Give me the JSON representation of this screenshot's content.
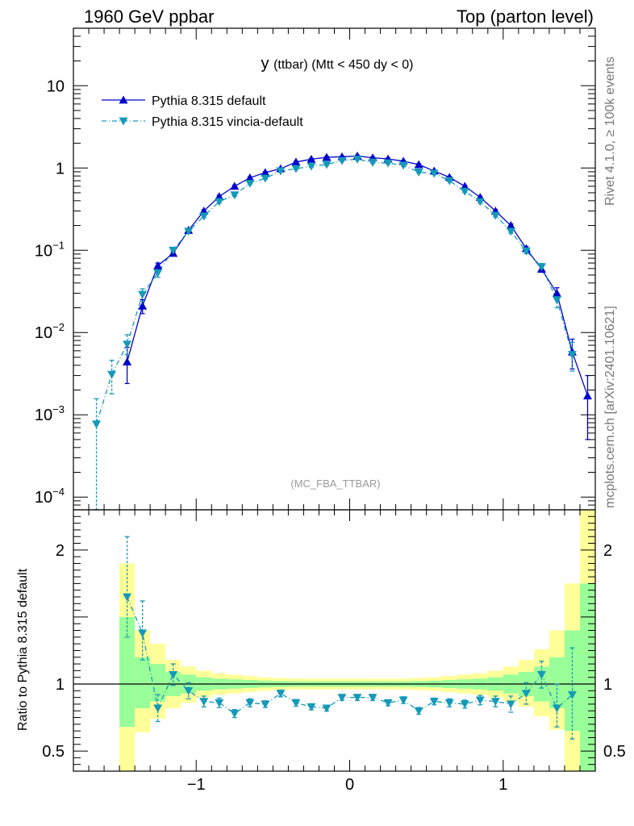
{
  "header": {
    "left": "1960 GeV ppbar",
    "right": "Top (parton level)"
  },
  "side_labels": {
    "rivet": "Rivet 4.1.0, ≥ 100k events",
    "mcplots": "mcplots.cern.ch [arXiv:2401.10621]"
  },
  "colors": {
    "default": "#0000cc",
    "vincia": "#1599b8",
    "band_inner": "#99ff99",
    "band_outer": "#ffff99"
  },
  "chart_data": [
    {
      "type": "line",
      "title_main": "y",
      "title_rest": "(ttbar) (Mtt < 450 dy < 0)",
      "watermark": "(MC_FBA_TTBAR)",
      "xlabel": "",
      "ylabel": "",
      "yscale": "log",
      "xlim": [
        -1.8,
        1.6
      ],
      "ylim": [
        7e-05,
        50
      ],
      "y_ticks": [
        {
          "value": 10,
          "mant": "10",
          "exp": ""
        },
        {
          "value": 1,
          "mant": "1",
          "exp": ""
        },
        {
          "value": 0.1,
          "mant": "10",
          "exp": "−1"
        },
        {
          "value": 0.01,
          "mant": "10",
          "exp": "−2"
        },
        {
          "value": 0.001,
          "mant": "10",
          "exp": "−3"
        },
        {
          "value": 0.0001,
          "mant": "10",
          "exp": "−4"
        }
      ],
      "legend": [
        "Pythia 8.315 default",
        "Pythia 8.315 vincia-default"
      ],
      "series": [
        {
          "name": "Pythia 8.315 default",
          "x": [
            -1.45,
            -1.35,
            -1.25,
            -1.15,
            -1.05,
            -0.95,
            -0.85,
            -0.75,
            -0.65,
            -0.55,
            -0.45,
            -0.35,
            -0.25,
            -0.15,
            -0.05,
            0.05,
            0.15,
            0.25,
            0.35,
            0.45,
            0.55,
            0.65,
            0.75,
            0.85,
            0.95,
            1.05,
            1.15,
            1.25,
            1.35,
            1.45,
            1.55
          ],
          "y": [
            0.0044,
            0.021,
            0.065,
            0.092,
            0.175,
            0.3,
            0.45,
            0.6,
            0.76,
            0.88,
            0.98,
            1.18,
            1.28,
            1.35,
            1.37,
            1.4,
            1.33,
            1.29,
            1.21,
            1.1,
            0.92,
            0.77,
            0.6,
            0.44,
            0.3,
            0.2,
            0.105,
            0.059,
            0.03,
            0.0058,
            0.0017
          ],
          "err_up": [
            0.0022,
            0.004,
            0.005,
            0.005,
            0.008,
            0.012,
            0.015,
            0.018,
            0.02,
            0.022,
            0.024,
            0.026,
            0.027,
            0.028,
            0.028,
            0.028,
            0.027,
            0.027,
            0.026,
            0.025,
            0.022,
            0.02,
            0.018,
            0.015,
            0.012,
            0.009,
            0.006,
            0.005,
            0.005,
            0.0025,
            0.0013
          ],
          "err_down": [
            0.002,
            0.004,
            0.005,
            0.005,
            0.008,
            0.012,
            0.015,
            0.018,
            0.02,
            0.022,
            0.024,
            0.026,
            0.027,
            0.028,
            0.028,
            0.028,
            0.027,
            0.027,
            0.026,
            0.025,
            0.022,
            0.02,
            0.018,
            0.015,
            0.012,
            0.009,
            0.006,
            0.005,
            0.005,
            0.0022,
            0.0012
          ]
        },
        {
          "name": "Pythia 8.315 vincia-default",
          "x": [
            -1.65,
            -1.55,
            -1.45,
            -1.35,
            -1.25,
            -1.15,
            -1.05,
            -0.95,
            -0.85,
            -0.75,
            -0.65,
            -0.55,
            -0.45,
            -0.35,
            -0.25,
            -0.15,
            -0.05,
            0.05,
            0.15,
            0.25,
            0.35,
            0.45,
            0.55,
            0.65,
            0.75,
            0.85,
            0.95,
            1.05,
            1.15,
            1.25,
            1.35,
            1.45
          ],
          "y": [
            0.00077,
            0.0031,
            0.0072,
            0.029,
            0.053,
            0.1,
            0.17,
            0.26,
            0.39,
            0.47,
            0.65,
            0.75,
            0.92,
            0.98,
            1.05,
            1.1,
            1.23,
            1.28,
            1.17,
            1.15,
            1.08,
            0.89,
            0.86,
            0.7,
            0.52,
            0.39,
            0.265,
            0.17,
            0.098,
            0.063,
            0.025,
            0.0054
          ],
          "err_up": [
            0.0008,
            0.0015,
            0.0022,
            0.005,
            0.006,
            0.007,
            0.008,
            0.012,
            0.014,
            0.016,
            0.018,
            0.02,
            0.022,
            0.024,
            0.025,
            0.026,
            0.027,
            0.027,
            0.026,
            0.025,
            0.024,
            0.022,
            0.02,
            0.018,
            0.016,
            0.014,
            0.012,
            0.009,
            0.007,
            0.006,
            0.005,
            0.0022
          ],
          "err_down": [
            0.0007,
            0.0013,
            0.0018,
            0.005,
            0.006,
            0.007,
            0.008,
            0.012,
            0.014,
            0.016,
            0.018,
            0.02,
            0.022,
            0.024,
            0.025,
            0.026,
            0.027,
            0.027,
            0.026,
            0.025,
            0.024,
            0.022,
            0.02,
            0.018,
            0.016,
            0.014,
            0.012,
            0.009,
            0.007,
            0.006,
            0.005,
            0.002
          ]
        }
      ]
    },
    {
      "type": "line",
      "ylabel": "Ratio to Pythia 8.315 default",
      "xlabel": "",
      "xlim": [
        -1.8,
        1.6
      ],
      "ylim": [
        0.35,
        2.3
      ],
      "x_ticks": [
        {
          "value": -1,
          "label": "−1"
        },
        {
          "value": 0,
          "label": "0"
        },
        {
          "value": 1,
          "label": "1"
        }
      ],
      "y_ticks": [
        {
          "value": 2,
          "label": "2"
        },
        {
          "value": 1,
          "label": "1"
        },
        {
          "value": 0.5,
          "label": "0.5"
        }
      ],
      "reference": 1,
      "bands": {
        "edges": [
          -1.5,
          -1.4,
          -1.3,
          -1.2,
          -1.1,
          -1.0,
          -0.9,
          -0.8,
          -0.7,
          -0.6,
          -0.5,
          -0.4,
          -0.3,
          -0.2,
          -0.1,
          0.0,
          0.1,
          0.2,
          0.3,
          0.4,
          0.5,
          0.6,
          0.7,
          0.8,
          0.9,
          1.0,
          1.1,
          1.2,
          1.3,
          1.4,
          1.5,
          1.6
        ],
        "inner_low": [
          0.68,
          0.82,
          0.87,
          0.91,
          0.93,
          0.95,
          0.96,
          0.965,
          0.97,
          0.975,
          0.978,
          0.98,
          0.98,
          0.98,
          0.98,
          0.98,
          0.98,
          0.98,
          0.98,
          0.978,
          0.975,
          0.97,
          0.965,
          0.96,
          0.95,
          0.93,
          0.91,
          0.87,
          0.82,
          0.65,
          0.35
        ],
        "inner_high": [
          1.5,
          1.2,
          1.15,
          1.09,
          1.07,
          1.05,
          1.04,
          1.035,
          1.03,
          1.025,
          1.022,
          1.02,
          1.02,
          1.02,
          1.02,
          1.02,
          1.02,
          1.02,
          1.02,
          1.022,
          1.025,
          1.03,
          1.035,
          1.04,
          1.05,
          1.07,
          1.09,
          1.13,
          1.2,
          1.4,
          1.75
        ],
        "outer_low": [
          0.35,
          0.64,
          0.74,
          0.82,
          0.86,
          0.9,
          0.92,
          0.93,
          0.94,
          0.95,
          0.955,
          0.96,
          0.96,
          0.96,
          0.96,
          0.96,
          0.96,
          0.96,
          0.96,
          0.955,
          0.95,
          0.94,
          0.93,
          0.92,
          0.9,
          0.87,
          0.83,
          0.76,
          0.66,
          0.35,
          0.35
        ],
        "outer_high": [
          1.9,
          1.4,
          1.3,
          1.18,
          1.13,
          1.1,
          1.08,
          1.07,
          1.06,
          1.05,
          1.045,
          1.04,
          1.04,
          1.04,
          1.04,
          1.04,
          1.04,
          1.04,
          1.04,
          1.045,
          1.05,
          1.06,
          1.07,
          1.08,
          1.1,
          1.13,
          1.18,
          1.26,
          1.4,
          1.75,
          2.3
        ]
      },
      "series": [
        {
          "name": "Pythia 8.315 vincia-default",
          "x": [
            -1.45,
            -1.35,
            -1.25,
            -1.15,
            -1.05,
            -0.95,
            -0.85,
            -0.75,
            -0.65,
            -0.55,
            -0.45,
            -0.35,
            -0.25,
            -0.15,
            -0.05,
            0.05,
            0.15,
            0.25,
            0.35,
            0.45,
            0.55,
            0.65,
            0.75,
            0.85,
            0.95,
            1.05,
            1.15,
            1.25,
            1.35,
            1.45
          ],
          "y": [
            1.65,
            1.38,
            0.82,
            1.07,
            0.95,
            0.87,
            0.86,
            0.78,
            0.86,
            0.85,
            0.93,
            0.86,
            0.83,
            0.82,
            0.9,
            0.9,
            0.9,
            0.86,
            0.88,
            0.8,
            0.87,
            0.86,
            0.85,
            0.88,
            0.87,
            0.85,
            0.93,
            1.07,
            0.82,
            0.92
          ],
          "err_up": [
            0.45,
            0.24,
            0.1,
            0.08,
            0.06,
            0.04,
            0.035,
            0.03,
            0.03,
            0.025,
            0.025,
            0.025,
            0.022,
            0.022,
            0.022,
            0.022,
            0.022,
            0.022,
            0.025,
            0.025,
            0.025,
            0.03,
            0.03,
            0.035,
            0.04,
            0.06,
            0.08,
            0.1,
            0.18,
            0.35
          ],
          "err_down": [
            0.3,
            0.2,
            0.1,
            0.08,
            0.06,
            0.04,
            0.035,
            0.03,
            0.03,
            0.025,
            0.025,
            0.025,
            0.022,
            0.022,
            0.022,
            0.022,
            0.022,
            0.022,
            0.025,
            0.025,
            0.025,
            0.03,
            0.03,
            0.035,
            0.04,
            0.06,
            0.08,
            0.1,
            0.14,
            0.33
          ]
        }
      ]
    }
  ]
}
